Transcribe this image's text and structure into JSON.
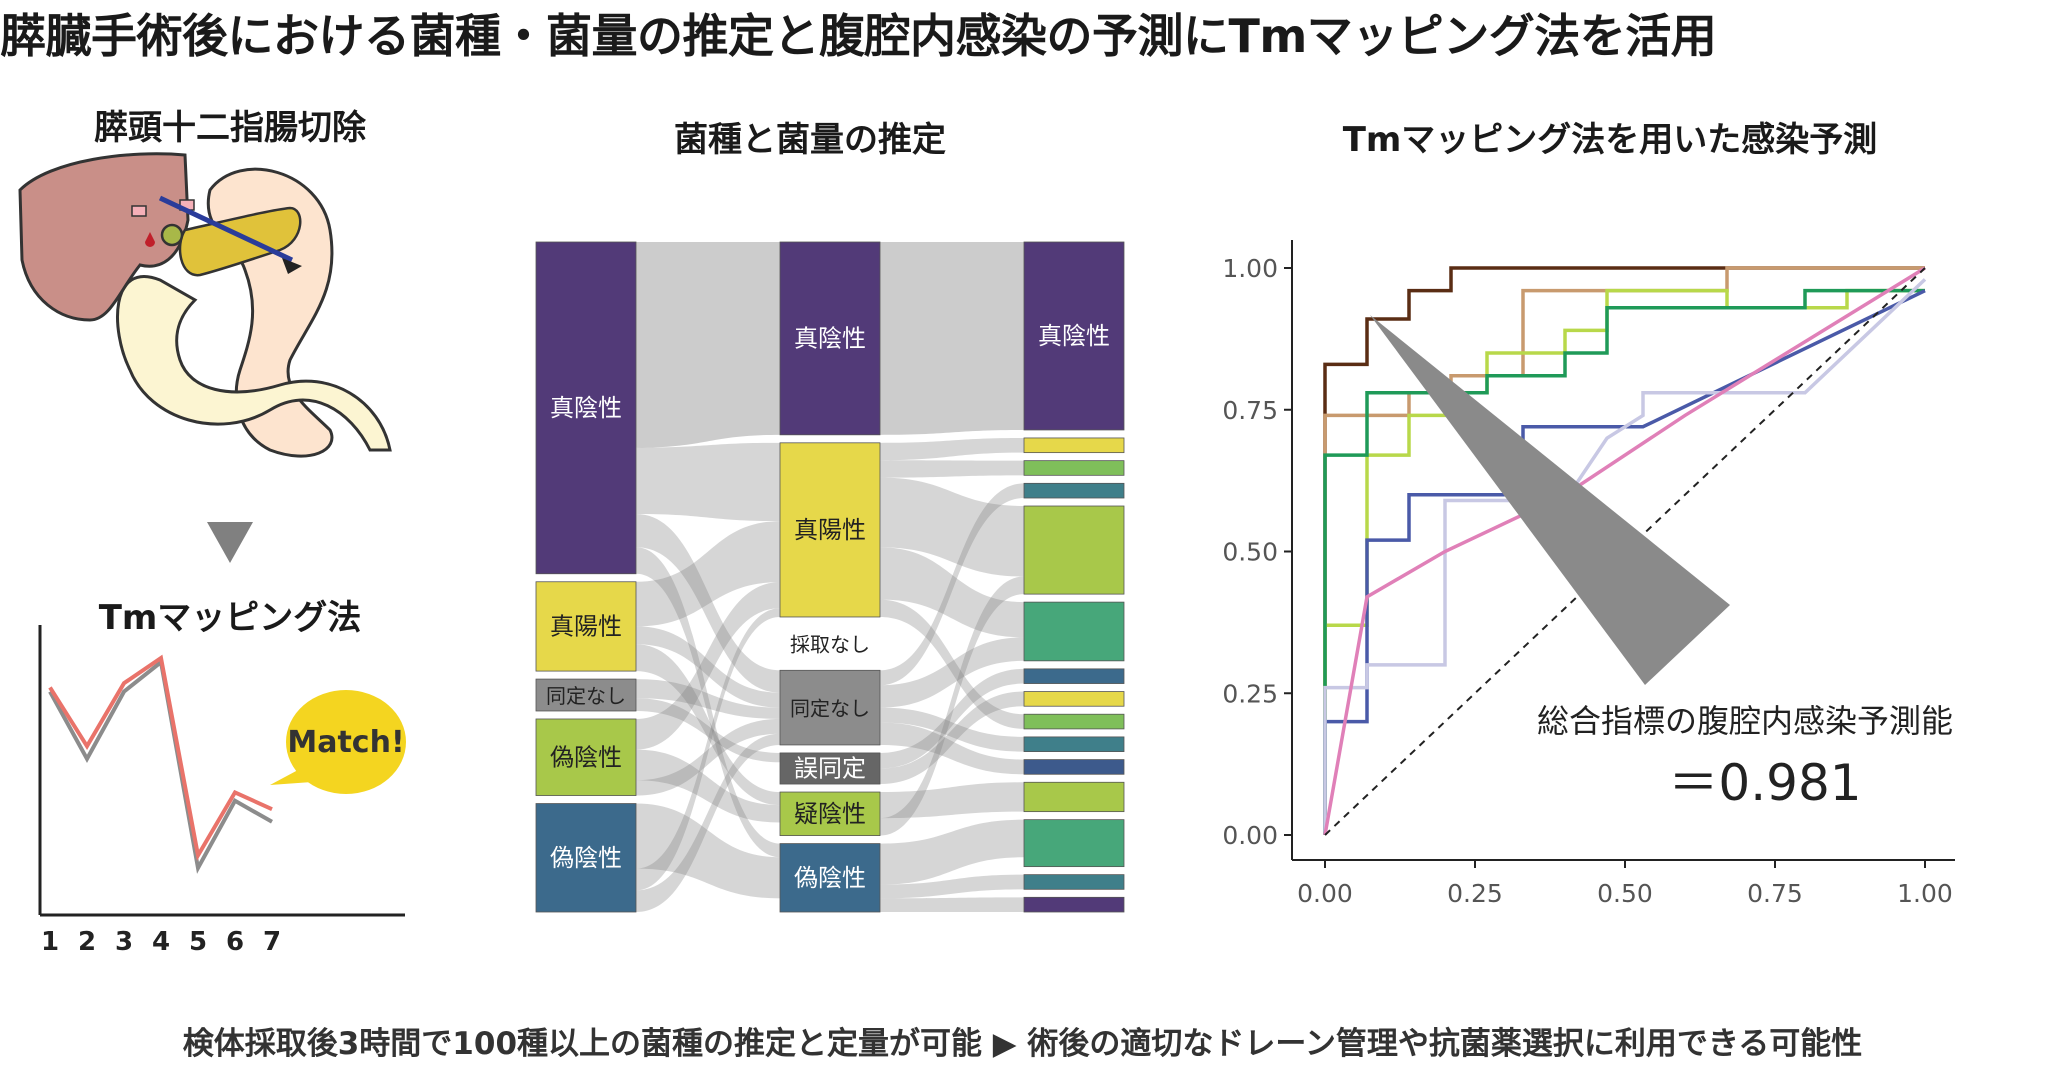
{
  "title": "膵臓手術後における菌種・菌量の推定と腹腔内感染の予測にTmマッピング法を活用",
  "footer": "検体採取後3時間で100種以上の菌種の推定と定量が可能 ▶ 術後の適切なドレーン管理や抗菌薬選択に利用できる可能性",
  "left_panel": {
    "surgery_title": "膵頭十二指腸切除",
    "method_title": "Tmマッピング法",
    "match_label": "Match!",
    "x_ticks": [
      "1",
      "2",
      "3",
      "4",
      "5",
      "6",
      "7"
    ],
    "series_values": {
      "red": [
        5.3,
        3.9,
        5.4,
        6.0,
        1.3,
        2.8,
        2.4
      ],
      "gray": [
        5.2,
        3.6,
        5.2,
        5.9,
        1.0,
        2.6,
        2.1
      ]
    },
    "colors": {
      "red": "#e9736a",
      "gray": "#8c8c8c",
      "bubble": "#f4d520",
      "arrow": "#808080"
    }
  },
  "middle_panel": {
    "title": "菌種と菌量の推定",
    "col1": [
      {
        "label": "真陰性",
        "value": 52,
        "color": "#523a78"
      },
      {
        "label": "真陽性",
        "value": 14,
        "color": "#e6d84a"
      },
      {
        "label": "同定なし",
        "value": 5,
        "color": "#8c8c8c"
      },
      {
        "label": "偽陰性",
        "value": 12,
        "color": "#a8c84a"
      },
      {
        "label": "偽陰性",
        "value": 17,
        "color": "#3c6a8c"
      }
    ],
    "col2": [
      {
        "label": "真陰性",
        "value": 31,
        "color": "#523a78"
      },
      {
        "label": "真陽性",
        "value": 28,
        "color": "#e6d84a"
      },
      {
        "label": "採取なし",
        "value": 6,
        "color": "#ffffff"
      },
      {
        "label": "同定なし",
        "value": 12,
        "color": "#8c8c8c"
      },
      {
        "label": "誤同定",
        "value": 5,
        "color": "#666666"
      },
      {
        "label": "疑陰性",
        "value": 7,
        "color": "#a8c84a"
      },
      {
        "label": "偽陰性",
        "value": 11,
        "color": "#3c6a8c"
      }
    ],
    "col3_label": "真陰性",
    "col3_colors": [
      "#523a78",
      "#e6d84a",
      "#7fbf5a",
      "#3f7f8a",
      "#a8c84a",
      "#47a77a",
      "#3c6a8c",
      "#e6d84a",
      "#7fbf5a",
      "#3f7f8a",
      "#3d5a8c",
      "#a8c84a",
      "#47a77a",
      "#3f7f8a",
      "#523a78"
    ],
    "col3_values": [
      32,
      2.5,
      2.5,
      2.5,
      15,
      10,
      2.5,
      2.5,
      2.5,
      2.5,
      2.5,
      5,
      8,
      2.5,
      2.5
    ]
  },
  "right_panel": {
    "title": "Tmマッピング法を用いた感染予測",
    "annotation_label": "総合指標の腹腔内感染予測能",
    "annotation_value": "＝0.981",
    "chart_data": {
      "type": "line",
      "xlim": [
        0,
        1
      ],
      "ylim": [
        0,
        1
      ],
      "x_ticks": [
        "0.00",
        "0.25",
        "0.50",
        "0.75",
        "1.00"
      ],
      "y_ticks": [
        "0.00",
        "0.25",
        "0.50",
        "0.75",
        "1.00"
      ],
      "grid": false,
      "legend": "none",
      "series": [
        {
          "color": "#5a2d14",
          "points": [
            [
              0,
              0
            ],
            [
              0,
              0.83
            ],
            [
              0.07,
              0.83
            ],
            [
              0.07,
              0.91
            ],
            [
              0.14,
              0.91
            ],
            [
              0.14,
              0.96
            ],
            [
              0.21,
              0.96
            ],
            [
              0.21,
              1
            ],
            [
              1,
              1
            ]
          ]
        },
        {
          "color": "#c89a6e",
          "points": [
            [
              0,
              0
            ],
            [
              0,
              0.74
            ],
            [
              0.14,
              0.74
            ],
            [
              0.14,
              0.78
            ],
            [
              0.21,
              0.78
            ],
            [
              0.21,
              0.81
            ],
            [
              0.33,
              0.81
            ],
            [
              0.33,
              0.85
            ],
            [
              0.33,
              0.96
            ],
            [
              0.67,
              0.96
            ],
            [
              0.67,
              1
            ],
            [
              1,
              1
            ]
          ]
        },
        {
          "color": "#b8d84a",
          "points": [
            [
              0,
              0
            ],
            [
              0,
              0.37
            ],
            [
              0.07,
              0.37
            ],
            [
              0.07,
              0.52
            ],
            [
              0.07,
              0.67
            ],
            [
              0.14,
              0.67
            ],
            [
              0.14,
              0.74
            ],
            [
              0.21,
              0.74
            ],
            [
              0.21,
              0.78
            ],
            [
              0.27,
              0.78
            ],
            [
              0.27,
              0.85
            ],
            [
              0.4,
              0.85
            ],
            [
              0.4,
              0.89
            ],
            [
              0.47,
              0.89
            ],
            [
              0.47,
              0.96
            ],
            [
              0.67,
              0.96
            ],
            [
              0.67,
              0.93
            ],
            [
              0.87,
              0.93
            ],
            [
              0.87,
              0.96
            ],
            [
              1,
              0.96
            ]
          ]
        },
        {
          "color": "#1f9a58",
          "points": [
            [
              0,
              0
            ],
            [
              0,
              0.67
            ],
            [
              0.07,
              0.67
            ],
            [
              0.07,
              0.78
            ],
            [
              0.27,
              0.78
            ],
            [
              0.27,
              0.81
            ],
            [
              0.4,
              0.81
            ],
            [
              0.4,
              0.85
            ],
            [
              0.47,
              0.85
            ],
            [
              0.47,
              0.93
            ],
            [
              0.8,
              0.93
            ],
            [
              0.8,
              0.96
            ],
            [
              1,
              0.96
            ]
          ]
        },
        {
          "color": "#4a5aa8",
          "points": [
            [
              0,
              0
            ],
            [
              0,
              0.2
            ],
            [
              0.07,
              0.2
            ],
            [
              0.07,
              0.52
            ],
            [
              0.14,
              0.52
            ],
            [
              0.14,
              0.6
            ],
            [
              0.33,
              0.6
            ],
            [
              0.33,
              0.72
            ],
            [
              0.53,
              0.72
            ],
            [
              1,
              0.96
            ]
          ]
        },
        {
          "color": "#c8c8e4",
          "points": [
            [
              0,
              0
            ],
            [
              0,
              0.26
            ],
            [
              0.07,
              0.26
            ],
            [
              0.07,
              0.3
            ],
            [
              0.2,
              0.3
            ],
            [
              0.2,
              0.59
            ],
            [
              0.4,
              0.59
            ],
            [
              0.47,
              0.7
            ],
            [
              0.53,
              0.74
            ],
            [
              0.53,
              0.78
            ],
            [
              0.8,
              0.78
            ],
            [
              1,
              0.98
            ]
          ]
        },
        {
          "color": "#e080b8",
          "points": [
            [
              0,
              0
            ],
            [
              0.07,
              0.42
            ],
            [
              0.2,
              0.5
            ],
            [
              0.4,
              0.6
            ],
            [
              0.6,
              0.74
            ],
            [
              0.8,
              0.87
            ],
            [
              1,
              1
            ]
          ]
        },
        {
          "color": "#222222",
          "dashed": true,
          "points": [
            [
              0,
              0
            ],
            [
              1,
              1
            ]
          ]
        }
      ]
    }
  }
}
